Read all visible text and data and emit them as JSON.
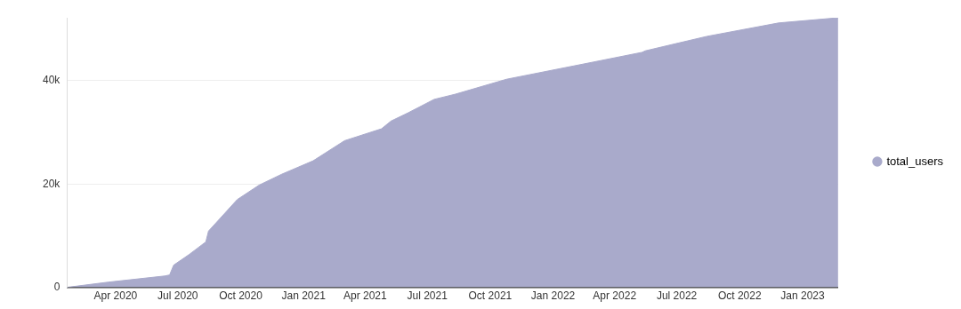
{
  "chart_data": {
    "type": "area",
    "x": [
      "2020-01-21",
      "2020-03-21",
      "2020-06-12",
      "2020-06-19",
      "2020-06-25",
      "2020-07-18",
      "2020-08-11",
      "2020-08-15",
      "2020-09-26",
      "2020-10-28",
      "2020-11-30",
      "2021-01-15",
      "2021-03-02",
      "2021-04-25",
      "2021-05-09",
      "2021-06-03",
      "2021-07-11",
      "2021-08-11",
      "2021-10-25",
      "2022-02-28",
      "2022-05-11",
      "2022-05-16",
      "2022-08-14",
      "2022-11-27",
      "2023-02-22"
    ],
    "series": [
      {
        "name": "total_users",
        "color": "#a9aacb",
        "values": [
          0,
          1000,
          2200,
          2400,
          4300,
          6400,
          8800,
          10900,
          17000,
          19800,
          21900,
          24500,
          28400,
          30700,
          32200,
          33800,
          36400,
          37400,
          40300,
          43600,
          45500,
          45800,
          48600,
          51200,
          52200
        ]
      }
    ],
    "xlim": [
      "2020-01-21",
      "2023-02-22"
    ],
    "xticks": [
      {
        "value": "2020-04",
        "label": "Apr 2020"
      },
      {
        "value": "2020-07",
        "label": "Jul 2020"
      },
      {
        "value": "2020-10",
        "label": "Oct 2020"
      },
      {
        "value": "2021-01",
        "label": "Jan 2021"
      },
      {
        "value": "2021-04",
        "label": "Apr 2021"
      },
      {
        "value": "2021-07",
        "label": "Jul 2021"
      },
      {
        "value": "2021-10",
        "label": "Oct 2021"
      },
      {
        "value": "2022-01",
        "label": "Jan 2022"
      },
      {
        "value": "2022-04",
        "label": "Apr 2022"
      },
      {
        "value": "2022-07",
        "label": "Jul 2022"
      },
      {
        "value": "2022-10",
        "label": "Oct 2022"
      },
      {
        "value": "2023-01",
        "label": "Jan 2023"
      }
    ],
    "yticks": [
      0,
      {
        "value": 20000,
        "label": "20k"
      },
      {
        "value": 40000,
        "label": "40k"
      }
    ],
    "ylim": [
      0,
      52200
    ],
    "grid": "y",
    "legend": "right"
  }
}
